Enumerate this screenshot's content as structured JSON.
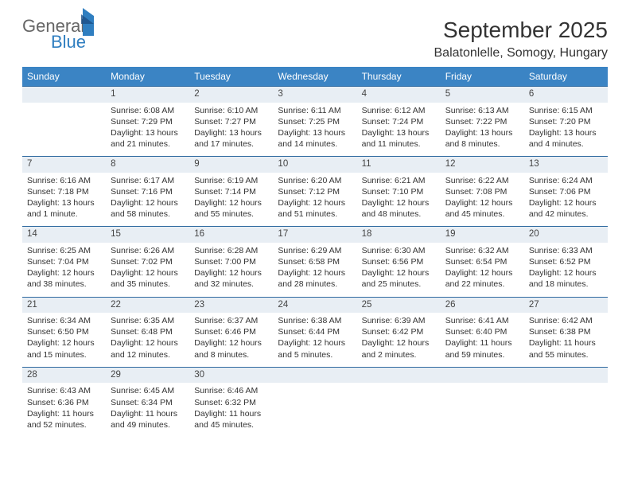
{
  "logo": {
    "word1": "General",
    "word2": "Blue"
  },
  "title": "September 2025",
  "location": "Balatonlelle, Somogy, Hungary",
  "header_bg": "#3b84c4",
  "daynum_bg": "#e8eef4",
  "border_color": "#2f6aa0",
  "columns": [
    "Sunday",
    "Monday",
    "Tuesday",
    "Wednesday",
    "Thursday",
    "Friday",
    "Saturday"
  ],
  "weeks": [
    [
      null,
      {
        "n": "1",
        "sr": "6:08 AM",
        "ss": "7:29 PM",
        "dl": "13 hours and 21 minutes."
      },
      {
        "n": "2",
        "sr": "6:10 AM",
        "ss": "7:27 PM",
        "dl": "13 hours and 17 minutes."
      },
      {
        "n": "3",
        "sr": "6:11 AM",
        "ss": "7:25 PM",
        "dl": "13 hours and 14 minutes."
      },
      {
        "n": "4",
        "sr": "6:12 AM",
        "ss": "7:24 PM",
        "dl": "13 hours and 11 minutes."
      },
      {
        "n": "5",
        "sr": "6:13 AM",
        "ss": "7:22 PM",
        "dl": "13 hours and 8 minutes."
      },
      {
        "n": "6",
        "sr": "6:15 AM",
        "ss": "7:20 PM",
        "dl": "13 hours and 4 minutes."
      }
    ],
    [
      {
        "n": "7",
        "sr": "6:16 AM",
        "ss": "7:18 PM",
        "dl": "13 hours and 1 minute."
      },
      {
        "n": "8",
        "sr": "6:17 AM",
        "ss": "7:16 PM",
        "dl": "12 hours and 58 minutes."
      },
      {
        "n": "9",
        "sr": "6:19 AM",
        "ss": "7:14 PM",
        "dl": "12 hours and 55 minutes."
      },
      {
        "n": "10",
        "sr": "6:20 AM",
        "ss": "7:12 PM",
        "dl": "12 hours and 51 minutes."
      },
      {
        "n": "11",
        "sr": "6:21 AM",
        "ss": "7:10 PM",
        "dl": "12 hours and 48 minutes."
      },
      {
        "n": "12",
        "sr": "6:22 AM",
        "ss": "7:08 PM",
        "dl": "12 hours and 45 minutes."
      },
      {
        "n": "13",
        "sr": "6:24 AM",
        "ss": "7:06 PM",
        "dl": "12 hours and 42 minutes."
      }
    ],
    [
      {
        "n": "14",
        "sr": "6:25 AM",
        "ss": "7:04 PM",
        "dl": "12 hours and 38 minutes."
      },
      {
        "n": "15",
        "sr": "6:26 AM",
        "ss": "7:02 PM",
        "dl": "12 hours and 35 minutes."
      },
      {
        "n": "16",
        "sr": "6:28 AM",
        "ss": "7:00 PM",
        "dl": "12 hours and 32 minutes."
      },
      {
        "n": "17",
        "sr": "6:29 AM",
        "ss": "6:58 PM",
        "dl": "12 hours and 28 minutes."
      },
      {
        "n": "18",
        "sr": "6:30 AM",
        "ss": "6:56 PM",
        "dl": "12 hours and 25 minutes."
      },
      {
        "n": "19",
        "sr": "6:32 AM",
        "ss": "6:54 PM",
        "dl": "12 hours and 22 minutes."
      },
      {
        "n": "20",
        "sr": "6:33 AM",
        "ss": "6:52 PM",
        "dl": "12 hours and 18 minutes."
      }
    ],
    [
      {
        "n": "21",
        "sr": "6:34 AM",
        "ss": "6:50 PM",
        "dl": "12 hours and 15 minutes."
      },
      {
        "n": "22",
        "sr": "6:35 AM",
        "ss": "6:48 PM",
        "dl": "12 hours and 12 minutes."
      },
      {
        "n": "23",
        "sr": "6:37 AM",
        "ss": "6:46 PM",
        "dl": "12 hours and 8 minutes."
      },
      {
        "n": "24",
        "sr": "6:38 AM",
        "ss": "6:44 PM",
        "dl": "12 hours and 5 minutes."
      },
      {
        "n": "25",
        "sr": "6:39 AM",
        "ss": "6:42 PM",
        "dl": "12 hours and 2 minutes."
      },
      {
        "n": "26",
        "sr": "6:41 AM",
        "ss": "6:40 PM",
        "dl": "11 hours and 59 minutes."
      },
      {
        "n": "27",
        "sr": "6:42 AM",
        "ss": "6:38 PM",
        "dl": "11 hours and 55 minutes."
      }
    ],
    [
      {
        "n": "28",
        "sr": "6:43 AM",
        "ss": "6:36 PM",
        "dl": "11 hours and 52 minutes."
      },
      {
        "n": "29",
        "sr": "6:45 AM",
        "ss": "6:34 PM",
        "dl": "11 hours and 49 minutes."
      },
      {
        "n": "30",
        "sr": "6:46 AM",
        "ss": "6:32 PM",
        "dl": "11 hours and 45 minutes."
      },
      null,
      null,
      null,
      null
    ]
  ],
  "labels": {
    "sunrise": "Sunrise:",
    "sunset": "Sunset:",
    "daylight": "Daylight:"
  }
}
